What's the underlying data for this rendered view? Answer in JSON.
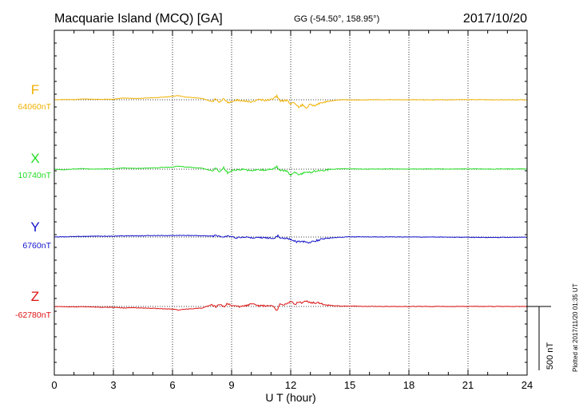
{
  "header": {
    "station": "Macquarie Island (MCQ)  [GA]",
    "coords": "GG (-54.50°, 158.95°)",
    "date": "2017/10/20"
  },
  "footer": {
    "plotted": "Plotted at 2017/11/20 01:35 UT"
  },
  "chart_data": {
    "type": "line",
    "xlabel": "U T (hour)",
    "xlim": [
      0,
      24
    ],
    "x_ticks": [
      0,
      3,
      6,
      9,
      12,
      15,
      18,
      21,
      24
    ],
    "scale_bar_label": "500 nT",
    "scale_bar_nT": 500,
    "grid": true,
    "series": [
      {
        "name": "F",
        "baseline_label": "64060nT",
        "color": "#f0b000",
        "x": [
          0,
          0.5,
          1,
          1.5,
          2,
          2.5,
          3,
          3.5,
          4,
          4.5,
          5,
          5.5,
          6,
          6.3,
          6.6,
          7,
          7.5,
          8,
          8.2,
          8.4,
          8.6,
          8.8,
          9,
          9.3,
          9.6,
          10,
          10.4,
          10.8,
          11.1,
          11.3,
          11.45,
          11.6,
          11.8,
          12,
          12.2,
          12.4,
          12.6,
          12.8,
          13,
          13.2,
          13.5,
          13.8,
          14.2,
          14.6,
          15,
          16,
          17,
          18,
          19,
          20,
          21,
          22,
          23,
          24
        ],
        "values": [
          0,
          2,
          1,
          6,
          4,
          3,
          4,
          14,
          9,
          12,
          15,
          20,
          27,
          32,
          22,
          18,
          10,
          -15,
          5,
          -20,
          10,
          -25,
          -12,
          -3,
          -8,
          -18,
          0,
          -3,
          5,
          30,
          -8,
          -10,
          -5,
          -30,
          -22,
          -55,
          -40,
          -60,
          -35,
          -45,
          -28,
          -15,
          -5,
          0,
          -2,
          0,
          1,
          0,
          -1,
          0,
          1,
          0,
          0,
          0
        ]
      },
      {
        "name": "X",
        "baseline_label": "10740nT",
        "color": "#22dd22",
        "x": [
          0,
          0.5,
          1,
          1.5,
          2,
          2.5,
          3,
          3.5,
          4,
          4.5,
          5,
          5.5,
          6,
          6.3,
          6.6,
          7,
          7.5,
          8,
          8.2,
          8.4,
          8.6,
          8.8,
          9,
          9.3,
          9.6,
          10,
          10.4,
          10.8,
          11.1,
          11.3,
          11.45,
          11.6,
          11.8,
          12,
          12.2,
          12.4,
          12.6,
          12.8,
          13,
          13.2,
          13.5,
          13.8,
          14.2,
          14.6,
          15,
          16,
          17,
          18,
          19,
          20,
          21,
          22,
          23,
          24
        ],
        "values": [
          0,
          -5,
          2,
          4,
          0,
          3,
          2,
          10,
          6,
          8,
          10,
          14,
          16,
          24,
          18,
          14,
          8,
          -12,
          6,
          -22,
          12,
          -28,
          -10,
          -6,
          0,
          -12,
          -6,
          -4,
          0,
          22,
          -12,
          -10,
          -15,
          -45,
          -20,
          -40,
          -35,
          -18,
          -25,
          -12,
          -15,
          -5,
          0,
          3,
          2,
          1,
          2,
          1,
          2,
          1,
          2,
          1,
          2,
          2
        ]
      },
      {
        "name": "Y",
        "baseline_label": "6760nT",
        "color": "#1111cc",
        "x": [
          0,
          0.5,
          1,
          1.5,
          2,
          2.5,
          3,
          3.5,
          4,
          4.5,
          5,
          5.5,
          6,
          6.5,
          7,
          7.5,
          8,
          8.3,
          8.6,
          8.9,
          9.2,
          9.6,
          10,
          10.5,
          11,
          11.2,
          11.35,
          11.5,
          11.7,
          11.9,
          12.1,
          12.3,
          12.6,
          12.9,
          13.2,
          13.5,
          14,
          14.5,
          15,
          16,
          17,
          18,
          19,
          20,
          21,
          22,
          23,
          24
        ],
        "values": [
          0,
          2,
          4,
          5,
          6,
          6,
          7,
          9,
          10,
          10,
          12,
          11,
          12,
          13,
          12,
          10,
          8,
          10,
          4,
          6,
          -4,
          -2,
          -3,
          -5,
          -8,
          -6,
          14,
          -8,
          -10,
          -12,
          -22,
          -38,
          -34,
          -42,
          -32,
          -20,
          -6,
          -2,
          2,
          1,
          1,
          0,
          0,
          -1,
          -2,
          -3,
          -2,
          -1
        ]
      },
      {
        "name": "Z",
        "baseline_label": "-62780nT",
        "color": "#dd1111",
        "x": [
          0,
          0.5,
          1,
          1.5,
          2,
          2.5,
          3,
          3.5,
          4,
          4.5,
          5,
          5.5,
          6,
          6.3,
          6.6,
          7,
          7.5,
          8,
          8.2,
          8.4,
          8.6,
          8.8,
          9,
          9.3,
          9.6,
          10,
          10.4,
          10.8,
          11.1,
          11.3,
          11.45,
          11.6,
          11.8,
          12,
          12.2,
          12.4,
          12.6,
          12.8,
          13,
          13.2,
          13.5,
          13.8,
          14.2,
          14.6,
          15,
          16,
          17,
          18,
          19,
          20,
          21,
          22,
          23,
          24
        ],
        "values": [
          0,
          -2,
          -3,
          -2,
          -4,
          -6,
          -6,
          -12,
          -10,
          -12,
          -14,
          -18,
          -20,
          -28,
          -22,
          -18,
          -12,
          15,
          -5,
          18,
          -6,
          25,
          8,
          -2,
          3,
          18,
          6,
          4,
          0,
          -30,
          15,
          12,
          20,
          40,
          15,
          35,
          28,
          45,
          32,
          30,
          25,
          12,
          5,
          2,
          2,
          1,
          0,
          0,
          0,
          0,
          0,
          0,
          0,
          0
        ]
      }
    ]
  }
}
